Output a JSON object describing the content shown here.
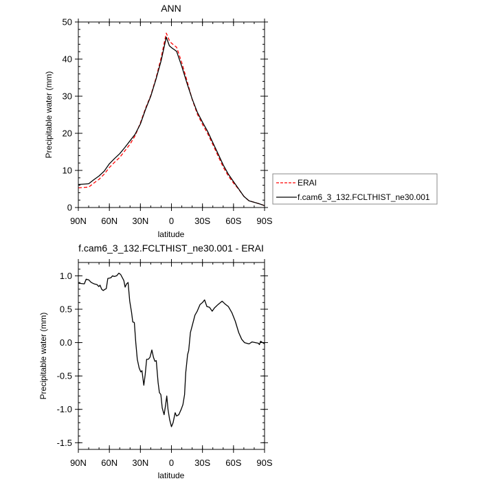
{
  "chart_data": [
    {
      "type": "line",
      "title": "ANN",
      "xlabel": "latitude",
      "ylabel": "Precipitable water (mm)",
      "xlim": [
        90,
        -90
      ],
      "ylim": [
        0,
        50
      ],
      "xticks": [
        90,
        60,
        30,
        0,
        -30,
        -60,
        -90
      ],
      "xtick_labels": [
        "90N",
        "60N",
        "30N",
        "0",
        "30S",
        "60S",
        "90S"
      ],
      "yticks": [
        0,
        10,
        20,
        30,
        40,
        50
      ],
      "ytick_labels": [
        "0",
        "10",
        "20",
        "30",
        "40",
        "50"
      ],
      "legend": {
        "placement": "right",
        "entries": [
          "ERAI",
          "f.cam6_3_132.FCLTHIST_ne30.001"
        ]
      },
      "x": [
        90,
        85,
        80,
        75,
        70,
        65,
        60,
        55,
        50,
        45,
        40,
        35,
        30,
        25,
        20,
        15,
        10,
        5,
        2,
        0,
        -5,
        -10,
        -15,
        -20,
        -25,
        -30,
        -35,
        -40,
        -45,
        -50,
        -55,
        -60,
        -65,
        -70,
        -75,
        -80,
        -85,
        -90
      ],
      "series": [
        {
          "name": "ERAI",
          "color": "#ff0000",
          "dash": true,
          "values": [
            5.3,
            5.4,
            5.5,
            6.6,
            7.6,
            9.0,
            10.8,
            12.2,
            13.5,
            15.3,
            17.1,
            19.4,
            22.8,
            26.8,
            30.2,
            34.8,
            40.3,
            47.0,
            45.0,
            44.3,
            43.2,
            39.0,
            34.2,
            29.2,
            25.2,
            22.4,
            19.9,
            17.0,
            13.9,
            10.9,
            8.5,
            6.6,
            4.9,
            3.0,
            1.8,
            1.4,
            1.0,
            0.5
          ]
        },
        {
          "name": "f.cam6_3_132.FCLTHIST_ne30.001",
          "color": "#000000",
          "dash": false,
          "values": [
            6.2,
            6.3,
            6.4,
            7.5,
            8.5,
            9.8,
            11.8,
            13.2,
            14.5,
            16.2,
            18.0,
            19.8,
            22.5,
            26.5,
            30.0,
            34.5,
            39.5,
            45.9,
            43.6,
            43.1,
            42.1,
            38.0,
            33.5,
            29.3,
            25.7,
            23.0,
            20.5,
            17.5,
            14.5,
            11.5,
            9.0,
            7.0,
            5.0,
            3.0,
            1.8,
            1.4,
            1.0,
            0.5
          ]
        }
      ]
    },
    {
      "type": "line",
      "title": "f.cam6_3_132.FCLTHIST_ne30.001 - ERAI",
      "xlabel": "latitude",
      "ylabel": "Precipitable water (mm)",
      "xlim": [
        90,
        -90
      ],
      "ylim": [
        -1.6,
        1.2
      ],
      "xticks": [
        90,
        60,
        30,
        0,
        -30,
        -60,
        -90
      ],
      "xtick_labels": [
        "90N",
        "60N",
        "30N",
        "0",
        "30S",
        "60S",
        "90S"
      ],
      "yticks": [
        1.0,
        0.5,
        0.0,
        -0.5,
        -1.0,
        -1.5
      ],
      "ytick_labels": [
        "1.0",
        "0.5",
        "0.0",
        "-0.5",
        "-1.0",
        "-1.5"
      ],
      "x": [
        90,
        84.2,
        82.4,
        80,
        77.5,
        74.8,
        72,
        70.2,
        69,
        67.5,
        66,
        64.1,
        63,
        61.5,
        58.6,
        57,
        55.3,
        53,
        50.8,
        49.1,
        46,
        44.8,
        43.4,
        41.9,
        40.3,
        38.5,
        37.4,
        35.9,
        34.5,
        33,
        31.2,
        29.6,
        28.5,
        26.7,
        25.4,
        24,
        22.3,
        20.7,
        18.9,
        17.4,
        16,
        14.7,
        12.9,
        11.6,
        10.2,
        8.9,
        7.1,
        5.8,
        4.5,
        3.3,
        1.8,
        0,
        -1.6,
        -3.6,
        -4.9,
        -7.1,
        -9.4,
        -11.1,
        -12.7,
        -13.8,
        -15.6,
        -16.7,
        -18.3,
        -20.5,
        -22.7,
        -24.9,
        -27.6,
        -30,
        -32,
        -34.3,
        -36.7,
        -39.4,
        -41.6,
        -45,
        -49,
        -51.7,
        -55,
        -58.4,
        -61.7,
        -65,
        -67.9,
        -70.6,
        -75,
        -77.9,
        -84,
        -85,
        -86.2,
        -90
      ],
      "series": [
        {
          "name": "f.cam6_3_132.FCLTHIST_ne30.001 - ERAI",
          "color": "#000000",
          "values": [
            0.89,
            0.88,
            0.95,
            0.94,
            0.9,
            0.88,
            0.87,
            0.84,
            0.86,
            0.8,
            0.78,
            0.8,
            0.81,
            0.96,
            0.97,
            1.0,
            0.99,
            1.0,
            1.04,
            1.02,
            0.93,
            0.83,
            0.88,
            0.9,
            0.62,
            0.45,
            0.31,
            0.3,
            0.0,
            -0.25,
            -0.38,
            -0.44,
            -0.42,
            -0.64,
            -0.48,
            -0.25,
            -0.25,
            -0.22,
            -0.11,
            -0.22,
            -0.28,
            -0.27,
            -0.6,
            -0.75,
            -0.78,
            -0.98,
            -1.08,
            -0.95,
            -0.8,
            -1.0,
            -1.15,
            -1.26,
            -1.2,
            -1.05,
            -1.1,
            -1.08,
            -1.0,
            -0.93,
            -0.78,
            -0.45,
            -0.18,
            -0.12,
            0.15,
            0.28,
            0.41,
            0.47,
            0.57,
            0.6,
            0.64,
            0.54,
            0.53,
            0.47,
            0.52,
            0.57,
            0.62,
            0.58,
            0.54,
            0.45,
            0.32,
            0.15,
            0.05,
            0.0,
            -0.02,
            0.01,
            -0.01,
            -0.03,
            0.02,
            -0.02
          ]
        }
      ]
    }
  ]
}
